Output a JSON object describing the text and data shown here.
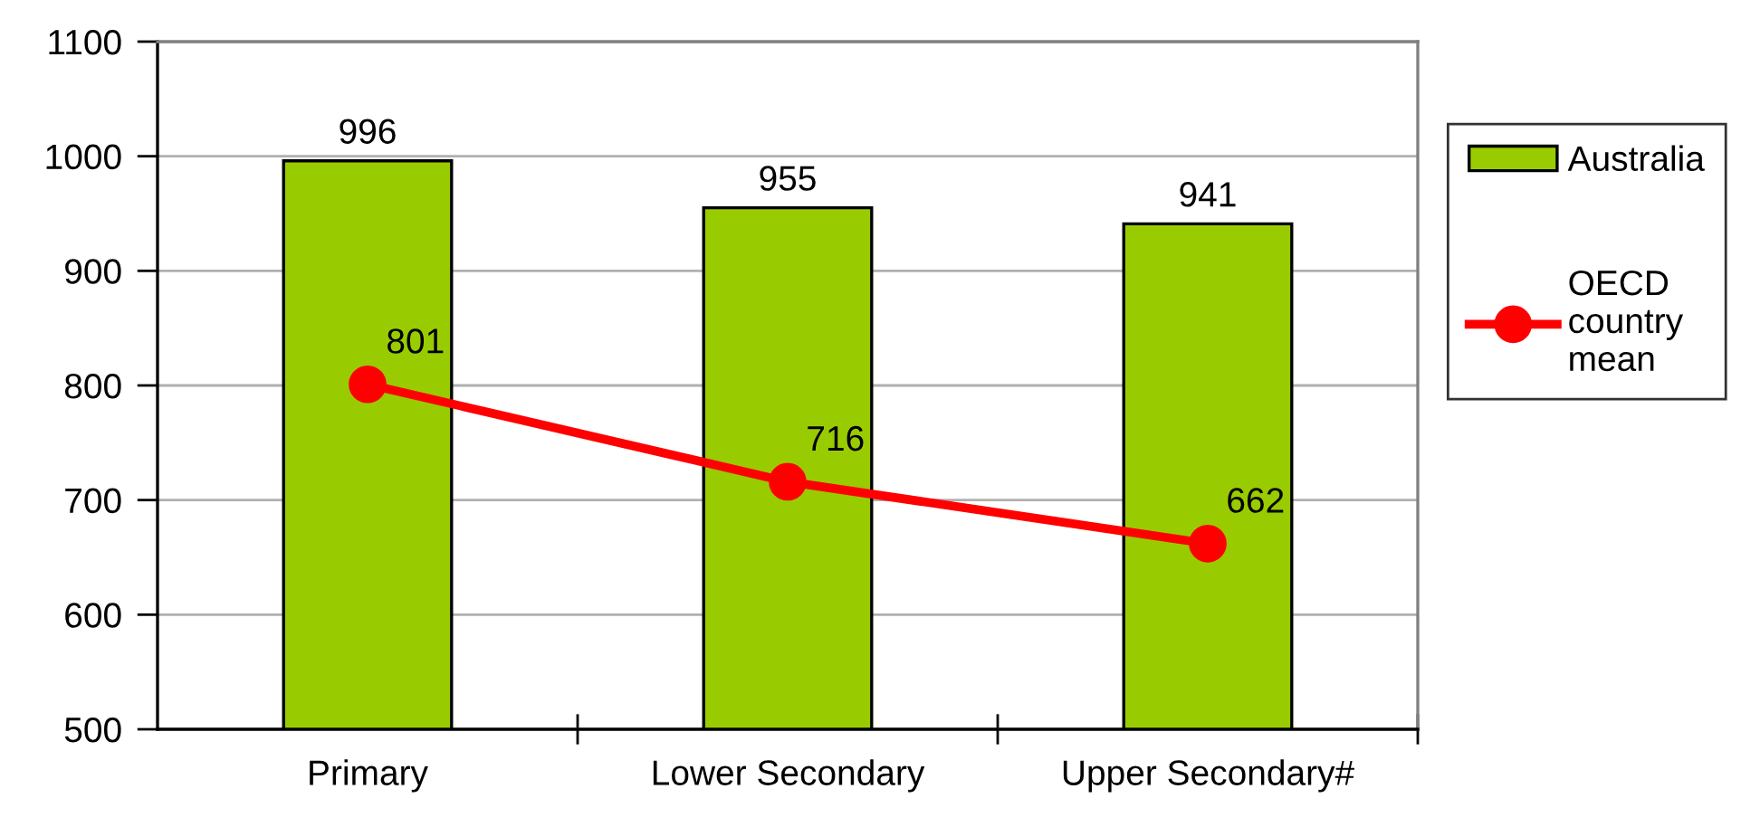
{
  "chart_data": {
    "type": "bar",
    "categories": [
      "Primary",
      "Lower Secondary",
      "Upper Secondary#"
    ],
    "series": [
      {
        "name": "Australia",
        "color": "#99cc00",
        "values": [
          996,
          955,
          941
        ]
      },
      {
        "name": "OECD country mean",
        "type": "line",
        "color": "#ff0000",
        "values": [
          801,
          716,
          662
        ]
      }
    ],
    "ylim": [
      500,
      1100
    ],
    "yticks": [
      500,
      600,
      700,
      800,
      900,
      1000,
      1100
    ],
    "grid": "y",
    "legend": "right",
    "marker": "circle",
    "line_style": "solid",
    "data_labels": true
  }
}
